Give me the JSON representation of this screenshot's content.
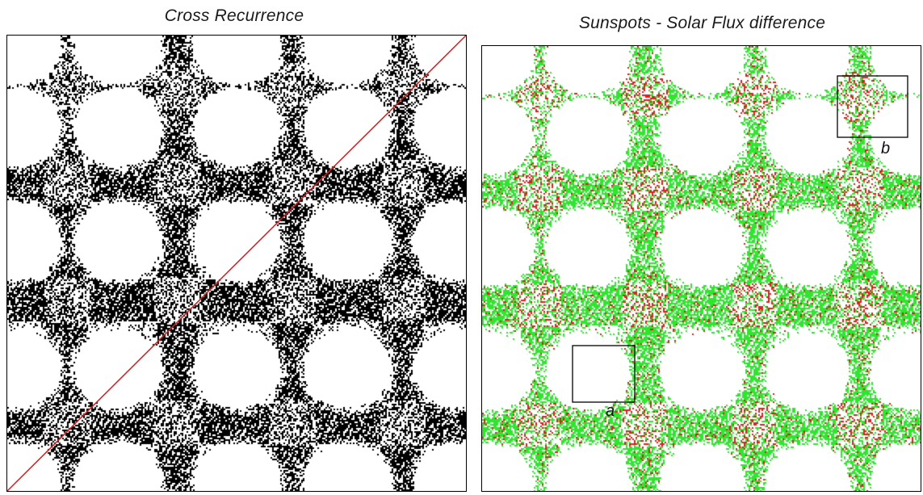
{
  "panels": {
    "left": {
      "title": "Cross Recurrence",
      "colors": {
        "recurrence": "#000000",
        "diagonal": "#cc1f1f",
        "background": "#ffffff"
      }
    },
    "right": {
      "title": "Sunspots - Solar Flux  difference",
      "colors": {
        "green": "#2ee62e",
        "red": "#dd1f1f",
        "background": "#ffffff"
      },
      "boxes": [
        {
          "label": "a"
        },
        {
          "label": "b"
        }
      ]
    }
  }
}
